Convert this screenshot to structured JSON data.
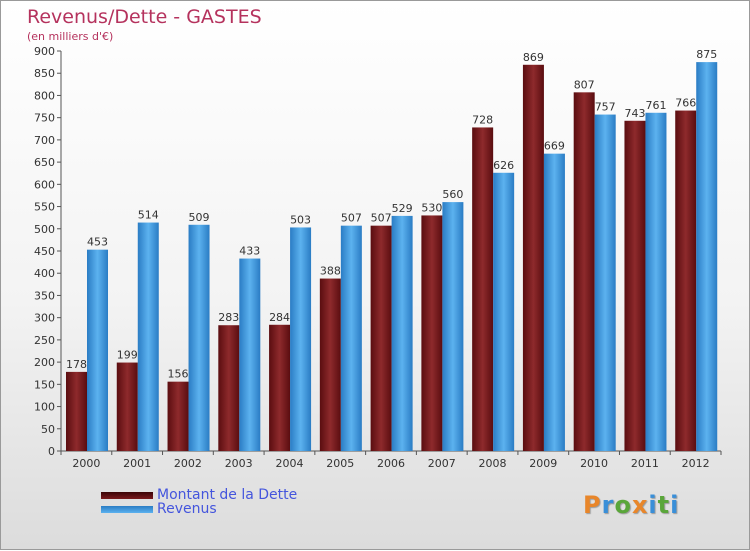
{
  "chart_data": {
    "type": "bar",
    "title": "Revenus/Dette - GASTES",
    "subtitle": "(en milliers d'€)",
    "categories": [
      "2000",
      "2001",
      "2002",
      "2003",
      "2004",
      "2005",
      "2006",
      "2007",
      "2008",
      "2009",
      "2010",
      "2011",
      "2012"
    ],
    "series": [
      {
        "name": "Montant de la Dette",
        "color": "#6e1a1e",
        "values": [
          178,
          199,
          156,
          283,
          284,
          388,
          507,
          530,
          728,
          869,
          807,
          743,
          766
        ]
      },
      {
        "name": "Revenus",
        "color": "#3a94dc",
        "values": [
          453,
          514,
          509,
          433,
          503,
          507,
          529,
          560,
          626,
          669,
          757,
          761,
          875
        ]
      }
    ],
    "ylim": [
      0,
      900
    ],
    "yticks": [
      0,
      50,
      100,
      150,
      200,
      250,
      300,
      350,
      400,
      450,
      500,
      550,
      600,
      650,
      700,
      750,
      800,
      850,
      900
    ],
    "grid": false,
    "legend_position": "bottom-left"
  },
  "logo": {
    "letters": [
      "P",
      "r",
      "o",
      "x",
      "i",
      "t",
      "i"
    ],
    "colors": [
      "#e8862a",
      "#3a8fd8",
      "#5aa63a",
      "#e8862a",
      "#3a8fd8",
      "#5aa63a",
      "#3a8fd8"
    ]
  }
}
